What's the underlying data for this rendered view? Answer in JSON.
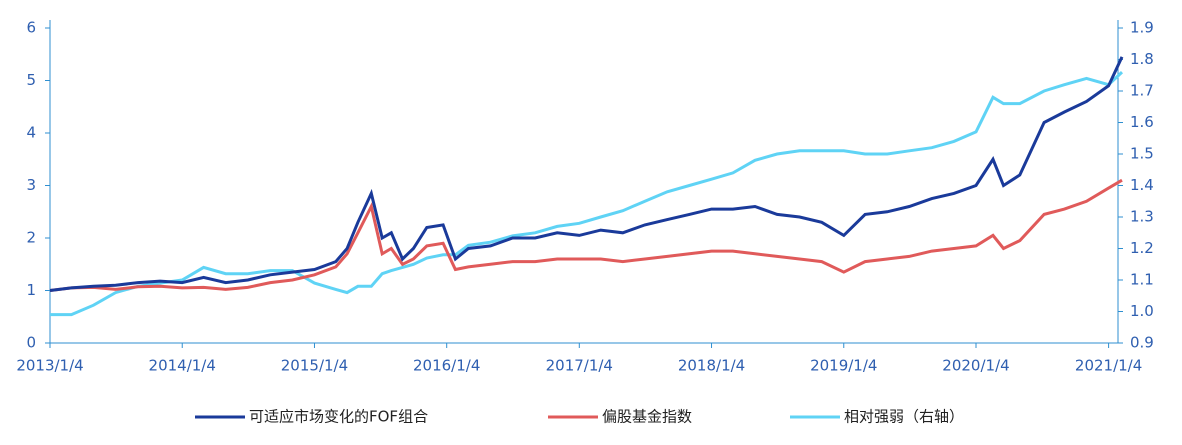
{
  "chart_data": {
    "type": "line",
    "x": [
      "2013/1/4",
      "2013/3/4",
      "2013/5/4",
      "2013/7/4",
      "2013/9/4",
      "2013/11/4",
      "2014/1/4",
      "2014/3/4",
      "2014/5/4",
      "2014/7/4",
      "2014/9/4",
      "2014/11/4",
      "2015/1/4",
      "2015/3/4",
      "2015/4/4",
      "2015/5/4",
      "2015/6/10",
      "2015/7/10",
      "2015/8/4",
      "2015/9/4",
      "2015/10/4",
      "2015/11/10",
      "2015/12/25",
      "2016/1/28",
      "2016/3/4",
      "2016/5/4",
      "2016/7/4",
      "2016/9/4",
      "2016/11/4",
      "2017/1/4",
      "2017/3/4",
      "2017/5/4",
      "2017/7/4",
      "2017/9/4",
      "2017/11/4",
      "2018/1/4",
      "2018/3/4",
      "2018/5/4",
      "2018/7/4",
      "2018/9/4",
      "2018/11/4",
      "2019/1/4",
      "2019/3/4",
      "2019/5/4",
      "2019/7/4",
      "2019/9/4",
      "2019/11/4",
      "2020/1/4",
      "2020/2/20",
      "2020/3/20",
      "2020/5/4",
      "2020/7/10",
      "2020/9/4",
      "2020/11/4",
      "2021/1/4",
      "2021/2/10"
    ],
    "series": [
      {
        "name": "可适应市场变化的FOF组合",
        "color": "#1a3a9a",
        "values": [
          1.0,
          1.05,
          1.08,
          1.1,
          1.15,
          1.18,
          1.15,
          1.25,
          1.15,
          1.2,
          1.3,
          1.35,
          1.4,
          1.55,
          1.8,
          2.3,
          2.85,
          2.0,
          2.1,
          1.6,
          1.8,
          2.2,
          2.25,
          1.6,
          1.8,
          1.85,
          2.0,
          2.0,
          2.1,
          2.05,
          2.15,
          2.1,
          2.25,
          2.35,
          2.45,
          2.55,
          2.55,
          2.6,
          2.45,
          2.4,
          2.3,
          2.05,
          2.45,
          2.5,
          2.6,
          2.75,
          2.85,
          3.0,
          3.5,
          3.0,
          3.2,
          4.2,
          4.4,
          4.6,
          4.9,
          5.45
        ]
      },
      {
        "name": "偏股基金指数",
        "color": "#e05a5a",
        "values": [
          1.0,
          1.05,
          1.06,
          1.02,
          1.07,
          1.08,
          1.05,
          1.06,
          1.02,
          1.06,
          1.15,
          1.2,
          1.3,
          1.45,
          1.7,
          2.1,
          2.6,
          1.7,
          1.8,
          1.5,
          1.6,
          1.85,
          1.9,
          1.4,
          1.45,
          1.5,
          1.55,
          1.55,
          1.6,
          1.6,
          1.6,
          1.55,
          1.6,
          1.65,
          1.7,
          1.75,
          1.75,
          1.7,
          1.65,
          1.6,
          1.55,
          1.35,
          1.55,
          1.6,
          1.65,
          1.75,
          1.8,
          1.85,
          2.05,
          1.8,
          1.95,
          2.45,
          2.55,
          2.7,
          2.95,
          3.1
        ]
      },
      {
        "name": "相对强弱（右轴）",
        "color": "#5fd3f5",
        "axis": "y2",
        "values": [
          0.99,
          0.99,
          1.02,
          1.06,
          1.08,
          1.09,
          1.1,
          1.14,
          1.12,
          1.12,
          1.13,
          1.13,
          1.09,
          1.07,
          1.06,
          1.08,
          1.08,
          1.12,
          1.13,
          1.14,
          1.15,
          1.17,
          1.18,
          1.18,
          1.21,
          1.22,
          1.24,
          1.25,
          1.27,
          1.28,
          1.3,
          1.32,
          1.35,
          1.38,
          1.4,
          1.42,
          1.44,
          1.48,
          1.5,
          1.51,
          1.51,
          1.51,
          1.5,
          1.5,
          1.51,
          1.52,
          1.54,
          1.57,
          1.68,
          1.66,
          1.66,
          1.7,
          1.72,
          1.74,
          1.72,
          1.76
        ]
      }
    ],
    "xlim": [
      "2013/1/4",
      "2021/2/10"
    ],
    "xticks": [
      "2013/1/4",
      "2014/1/4",
      "2015/1/4",
      "2016/1/4",
      "2017/1/4",
      "2018/1/4",
      "2019/1/4",
      "2020/1/4",
      "2021/1/4"
    ],
    "ylim": [
      0,
      6
    ],
    "yticks": [
      0,
      1,
      2,
      3,
      4,
      5,
      6
    ],
    "y2lim": [
      0.9,
      1.9
    ],
    "y2ticks": [
      0.9,
      {
        "value": 1,
        "label": "1.0"
      },
      1.1,
      1.2,
      1.3,
      1.4,
      1.5,
      1.6,
      1.7,
      1.8,
      1.9
    ],
    "legend": "bottom",
    "grid": false
  }
}
